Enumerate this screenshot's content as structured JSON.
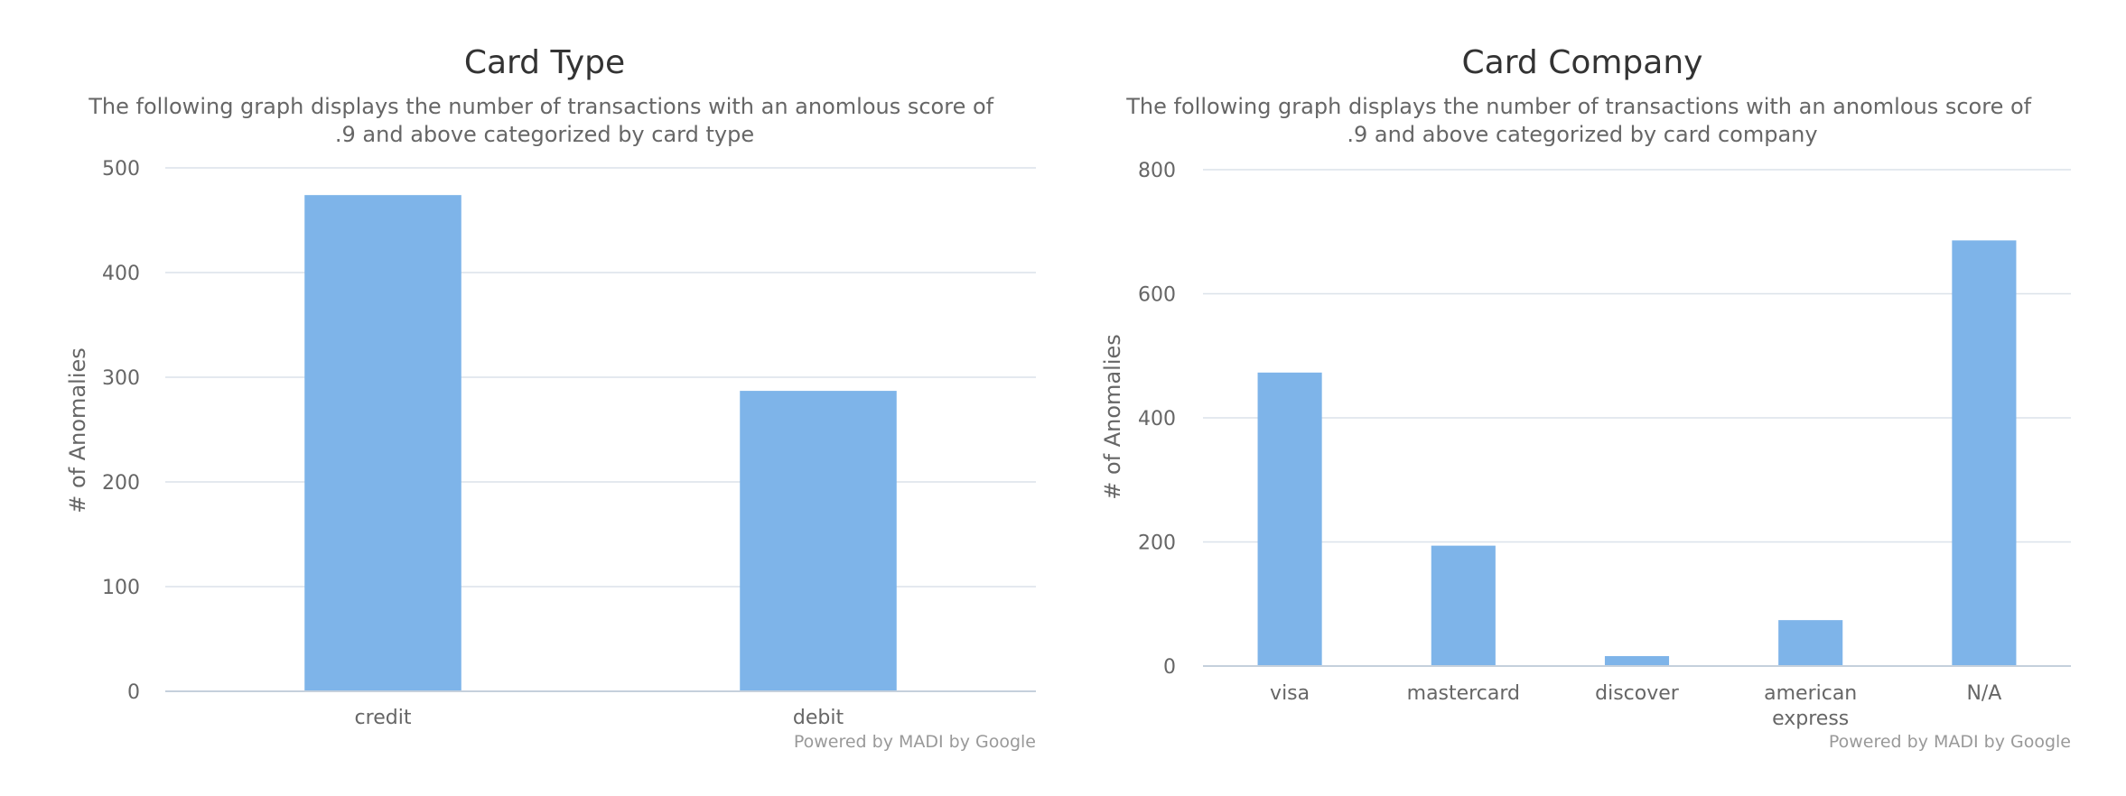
{
  "colors": {
    "bar": "#7eb4e9"
  },
  "chart_data": [
    {
      "type": "bar",
      "title": "Card Type",
      "subtitle": "The following graph displays the number of transactions with an anomlous score of .9 and above categorized by card type",
      "subtitle_lines": [
        "The following graph displays the number of transactions with an anomlous score of",
        ".9 and above categorized by card type"
      ],
      "ylabel": "# of Anomalies",
      "xlabel": "",
      "categories": [
        "credit",
        "debit"
      ],
      "values": [
        474,
        287
      ],
      "ylim": [
        0,
        500
      ],
      "yticks": [
        0,
        100,
        200,
        300,
        400,
        500
      ],
      "grid": true,
      "credit": "Powered by MADI by Google"
    },
    {
      "type": "bar",
      "title": "Card Company",
      "subtitle": "The following graph displays the number of transactions with an anomlous score of .9 and above categorized by card company",
      "subtitle_lines": [
        "The following graph displays the number of transactions with an anomlous score of",
        ".9 and above categorized by card company"
      ],
      "ylabel": "# of Anomalies",
      "xlabel": "",
      "categories": [
        "visa",
        "mastercard",
        "discover",
        "american express",
        "N/A"
      ],
      "category_lines": [
        [
          "visa"
        ],
        [
          "mastercard"
        ],
        [
          "discover"
        ],
        [
          "american",
          "express"
        ],
        [
          "N/A"
        ]
      ],
      "values": [
        473,
        194,
        16,
        74,
        686
      ],
      "ylim": [
        0,
        800
      ],
      "yticks": [
        0,
        200,
        400,
        600,
        800
      ],
      "grid": true,
      "credit": "Powered by MADI by Google"
    }
  ]
}
